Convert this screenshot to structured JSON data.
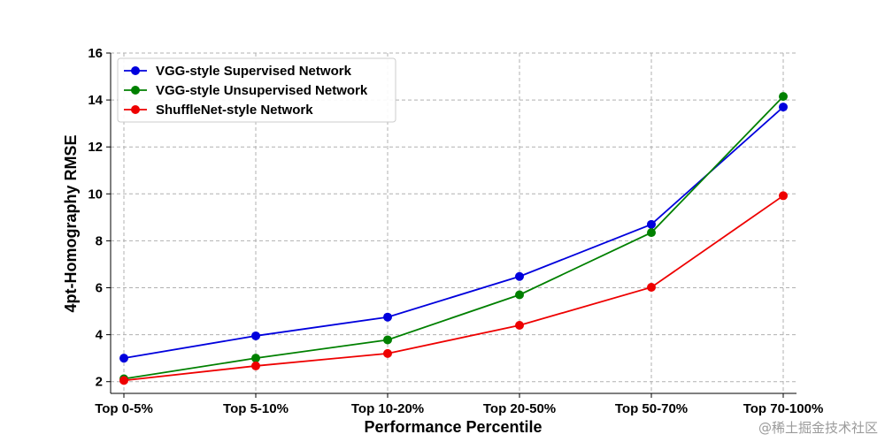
{
  "chart_data": {
    "type": "line",
    "title": "",
    "xlabel": "Performance Percentile",
    "ylabel": "4pt-Homography RMSE",
    "categories": [
      "Top 0-5%",
      "Top 5-10%",
      "Top 10-20%",
      "Top 20-50%",
      "Top 50-70%",
      "Top 70-100%"
    ],
    "ylim": [
      1.5,
      16
    ],
    "yticks": [
      2,
      4,
      6,
      8,
      10,
      12,
      14,
      16
    ],
    "grid": true,
    "legend_position": "top-left",
    "series": [
      {
        "name": "VGG-style Supervised Network",
        "color": "#0000dd",
        "values": [
          3.0,
          3.95,
          4.75,
          6.48,
          8.7,
          13.7
        ]
      },
      {
        "name": "VGG-style Unsupervised Network",
        "color": "#008000",
        "values": [
          2.12,
          3.0,
          3.78,
          5.7,
          8.35,
          14.15
        ]
      },
      {
        "name": "ShuffleNet-style Network",
        "color": "#ee0000",
        "values": [
          2.05,
          2.67,
          3.2,
          4.4,
          6.02,
          9.92
        ]
      }
    ]
  },
  "watermark": "@稀土掘金技术社区"
}
